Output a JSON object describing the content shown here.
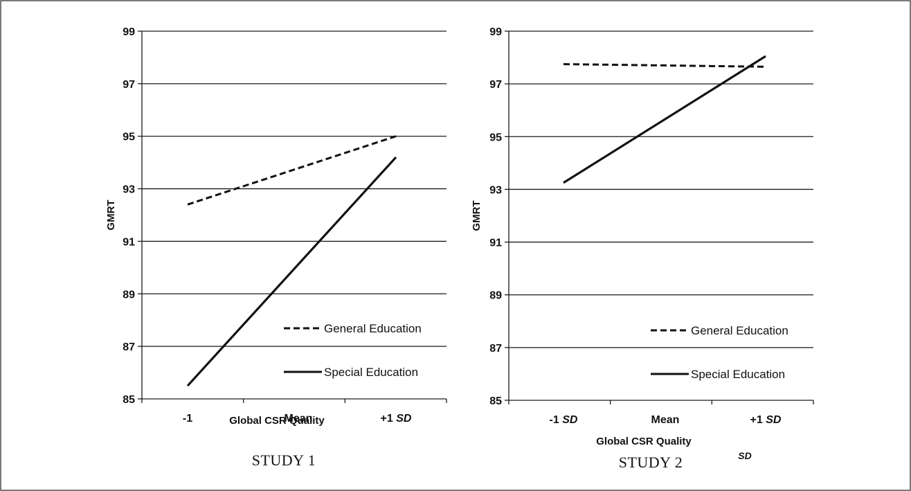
{
  "chart_data": [
    {
      "type": "line",
      "title": "STUDY 1",
      "xlabel": "Global CSR Quality",
      "ylabel": "GMRT",
      "ylim": [
        85,
        99
      ],
      "yticks": [
        99,
        97,
        95,
        93,
        91,
        89,
        87,
        85
      ],
      "categories": [
        {
          "base": "-1",
          "suffix": ""
        },
        {
          "base": "Mean",
          "suffix": ""
        },
        {
          "base": "+1 ",
          "suffix": "SD"
        }
      ],
      "grid": true,
      "legend_position": "bottom-right",
      "series": [
        {
          "name": "General Education",
          "style": "dashed",
          "x": [
            0,
            2
          ],
          "values": [
            92.4,
            95.0
          ]
        },
        {
          "name": "Special Education",
          "style": "solid",
          "x": [
            0,
            2
          ],
          "values": [
            85.5,
            94.2
          ]
        }
      ]
    },
    {
      "type": "line",
      "title": "STUDY 2",
      "xlabel": "Global CSR Quality",
      "ylabel": "GMRT",
      "ylim": [
        85,
        99
      ],
      "yticks": [
        99,
        97,
        95,
        93,
        91,
        89,
        87,
        85
      ],
      "categories": [
        {
          "base": "-1 ",
          "suffix": "SD"
        },
        {
          "base": "Mean",
          "suffix": ""
        },
        {
          "base": "+1 ",
          "suffix": "SD"
        }
      ],
      "grid": true,
      "legend_position": "bottom-right",
      "series": [
        {
          "name": "General Education",
          "style": "dashed",
          "x": [
            0,
            2
          ],
          "values": [
            97.75,
            97.65
          ]
        },
        {
          "name": "Special Education",
          "style": "solid",
          "x": [
            0,
            2
          ],
          "values": [
            93.25,
            98.05
          ]
        }
      ]
    }
  ],
  "stray_text": "SD",
  "colors": {
    "ink": "#111111",
    "grid": "#1a1a1a",
    "background": "#ffffff"
  }
}
